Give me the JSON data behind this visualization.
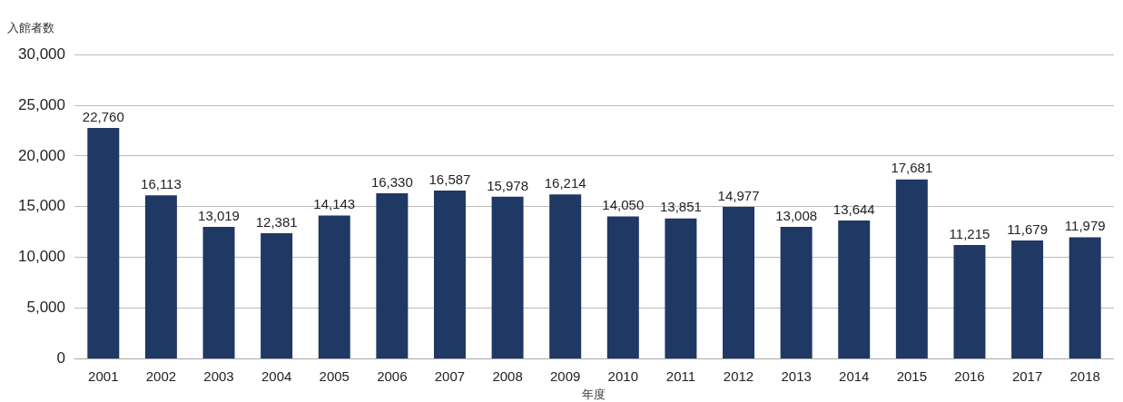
{
  "chart_data": {
    "type": "bar",
    "ylabel": "入館者数",
    "xlabel": "年度",
    "categories": [
      "2001",
      "2002",
      "2003",
      "2004",
      "2005",
      "2006",
      "2007",
      "2008",
      "2009",
      "2010",
      "2011",
      "2012",
      "2013",
      "2014",
      "2015",
      "2016",
      "2017",
      "2018"
    ],
    "values": [
      22760,
      16113,
      13019,
      12381,
      14143,
      16330,
      16587,
      15978,
      16214,
      14050,
      13851,
      14977,
      13008,
      13644,
      17681,
      11215,
      11679,
      11979
    ],
    "color": "#1f3864",
    "ylim": [
      0,
      30000
    ],
    "yticks": [
      {
        "value": 0,
        "label": "0"
      },
      {
        "value": 5000,
        "label": "5,000"
      },
      {
        "value": 10000,
        "label": "10,000"
      },
      {
        "value": 15000,
        "label": "15,000"
      },
      {
        "value": 20000,
        "label": "20,000"
      },
      {
        "value": 25000,
        "label": "25,000"
      },
      {
        "value": 30000,
        "label": "30,000"
      }
    ],
    "value_labels": [
      "22,760",
      "16,113",
      "13,019",
      "12,381",
      "14,143",
      "16,330",
      "16,587",
      "15,978",
      "16,214",
      "14,050",
      "13,851",
      "14,977",
      "13,008",
      "13,644",
      "17,681",
      "11,215",
      "11,679",
      "11,979"
    ],
    "grid": "y"
  }
}
